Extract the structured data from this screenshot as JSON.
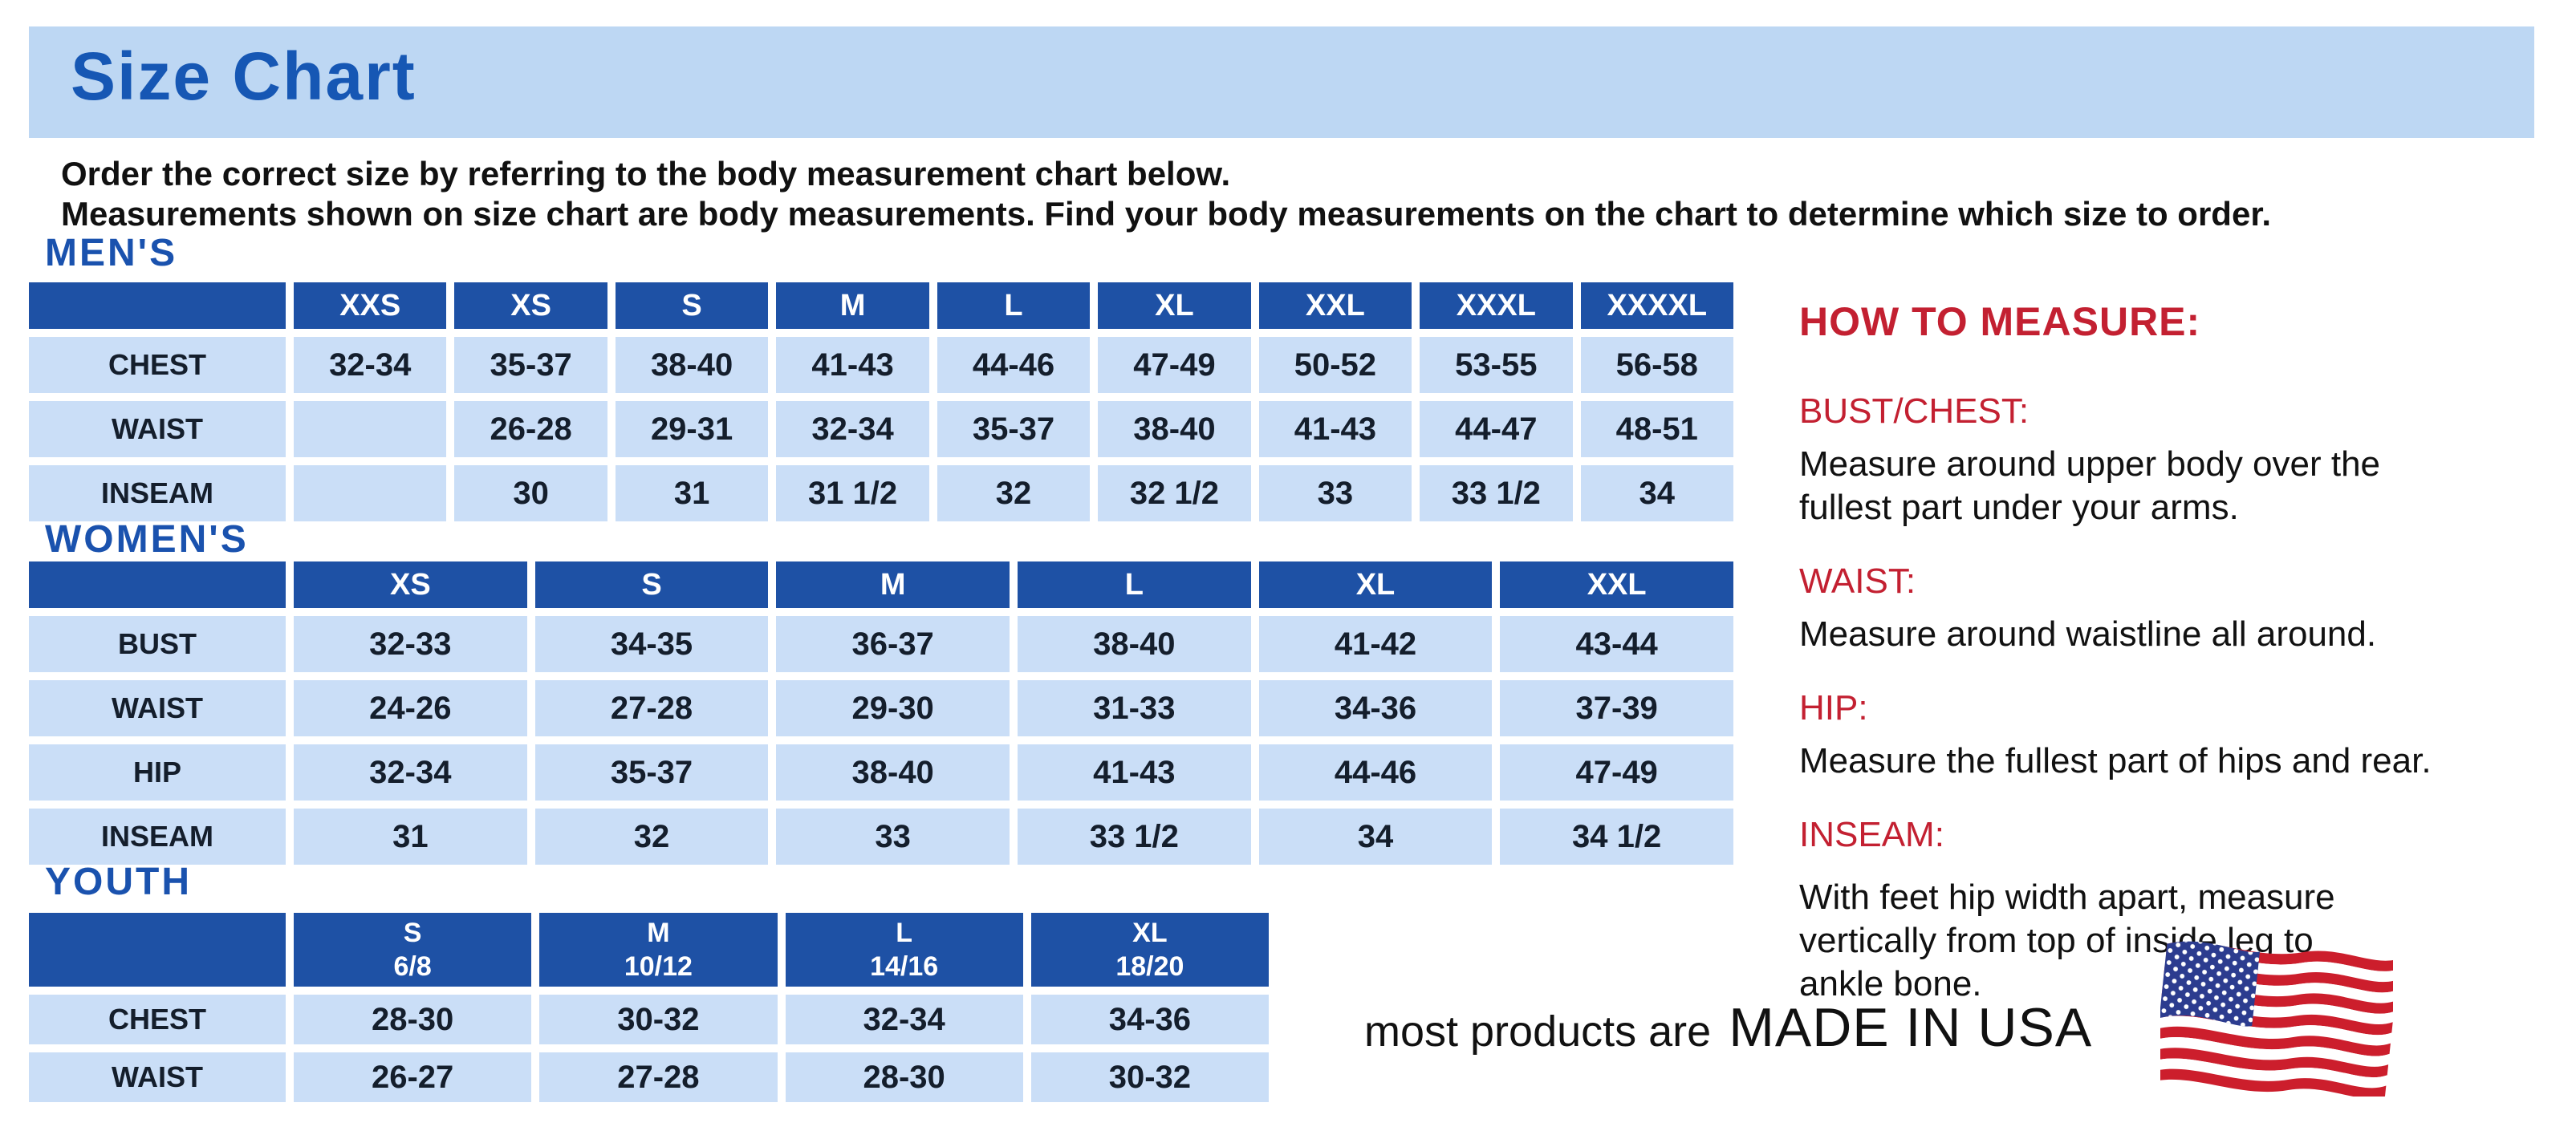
{
  "page": {
    "title": "Size Chart",
    "intro_line1": "Order the correct size by referring to the body measurement chart below.",
    "intro_line2": "Measurements shown on size chart are body measurements.  Find your body measurements on the chart to determine which size to order."
  },
  "colors": {
    "band_bg": "#bdd7f3",
    "title_blue": "#1657b4",
    "heading_blue": "#1a52ae",
    "header_cell_bg": "#1e51a5",
    "cell_bg": "#cadef7",
    "cell_text": "#141e2c",
    "red": "#c32031"
  },
  "tables": {
    "mens": {
      "heading": "MEN'S",
      "sizes": [
        {
          "label": "XXS"
        },
        {
          "label": "XS"
        },
        {
          "label": "S"
        },
        {
          "label": "M"
        },
        {
          "label": "L"
        },
        {
          "label": "XL"
        },
        {
          "label": "XXL"
        },
        {
          "label": "XXXL"
        },
        {
          "label": "XXXXL"
        }
      ],
      "rows": [
        {
          "label": "CHEST",
          "values": [
            "32-34",
            "35-37",
            "38-40",
            "41-43",
            "44-46",
            "47-49",
            "50-52",
            "53-55",
            "56-58"
          ]
        },
        {
          "label": "WAIST",
          "values": [
            "",
            "26-28",
            "29-31",
            "32-34",
            "35-37",
            "38-40",
            "41-43",
            "44-47",
            "48-51"
          ]
        },
        {
          "label": "INSEAM",
          "values": [
            "",
            "30",
            "31",
            "31 1/2",
            "32",
            "32 1/2",
            "33",
            "33 1/2",
            "34"
          ]
        }
      ]
    },
    "womens": {
      "heading": "WOMEN'S",
      "sizes": [
        {
          "label": "XS"
        },
        {
          "label": "S"
        },
        {
          "label": "M"
        },
        {
          "label": "L"
        },
        {
          "label": "XL"
        },
        {
          "label": "XXL"
        }
      ],
      "rows": [
        {
          "label": "BUST",
          "values": [
            "32-33",
            "34-35",
            "36-37",
            "38-40",
            "41-42",
            "43-44"
          ]
        },
        {
          "label": "WAIST",
          "values": [
            "24-26",
            "27-28",
            "29-30",
            "31-33",
            "34-36",
            "37-39"
          ]
        },
        {
          "label": "HIP",
          "values": [
            "32-34",
            "35-37",
            "38-40",
            "41-43",
            "44-46",
            "47-49"
          ]
        },
        {
          "label": "INSEAM",
          "values": [
            "31",
            "32",
            "33",
            "33 1/2",
            "34",
            "34 1/2"
          ]
        }
      ]
    },
    "youth": {
      "heading": "YOUTH",
      "sizes": [
        {
          "label": "S",
          "sub": "6/8"
        },
        {
          "label": "M",
          "sub": "10/12"
        },
        {
          "label": "L",
          "sub": "14/16"
        },
        {
          "label": "XL",
          "sub": "18/20"
        }
      ],
      "rows": [
        {
          "label": "CHEST",
          "values": [
            "28-30",
            "30-32",
            "32-34",
            "34-36"
          ]
        },
        {
          "label": "WAIST",
          "values": [
            "26-27",
            "27-28",
            "28-30",
            "30-32"
          ]
        }
      ]
    }
  },
  "how_to_measure": {
    "title": "HOW TO MEASURE:",
    "sections": [
      {
        "heading": "BUST/CHEST:",
        "text": "Measure around upper body over the\nfullest part under your arms."
      },
      {
        "heading": "WAIST:",
        "text": "Measure around waistline all around."
      },
      {
        "heading": "HIP:",
        "text": "Measure the fullest part of hips and rear."
      },
      {
        "heading": "INSEAM:",
        "text": "With feet hip width apart, measure\nvertically from top of inside leg to\nankle bone."
      }
    ]
  },
  "footer": {
    "prefix": "most products are",
    "emphasis": "MADE IN USA",
    "flag_icon": "usa-flag"
  }
}
